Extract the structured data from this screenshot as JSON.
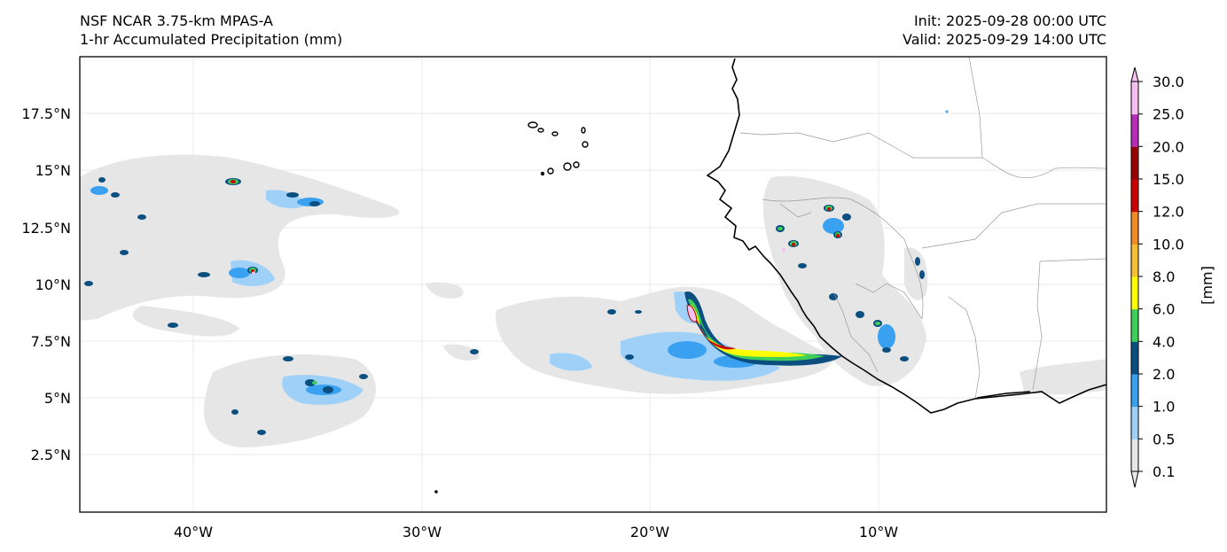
{
  "header": {
    "model": "NSF NCAR 3.75-km MPAS-A",
    "field": "1-hr Accumulated Precipitation (mm)",
    "init": "Init: 2025-09-28 00:00 UTC",
    "valid": "Valid: 2025-09-29 14:00 UTC"
  },
  "map": {
    "lat_ticks": [
      "17.5°N",
      "15°N",
      "12.5°N",
      "10°N",
      "7.5°N",
      "5°N",
      "2.5°N"
    ],
    "lon_ticks": [
      "40°W",
      "30°W",
      "20°W",
      "10°W"
    ],
    "extent": {
      "lon": [
        -45,
        0
      ],
      "lat": [
        0,
        20
      ]
    }
  },
  "colorbar": {
    "unit_label": "[mm]",
    "levels": [
      "0.1",
      "0.5",
      "1.0",
      "2.0",
      "4.0",
      "6.0",
      "8.0",
      "10.0",
      "12.0",
      "15.0",
      "20.0",
      "25.0",
      "30.0"
    ],
    "colors": [
      "#e6e6e6",
      "#9fd0f7",
      "#3aa0f0",
      "#0a4f80",
      "#3ecf5a",
      "#ffff00",
      "#f5c033",
      "#f08c24",
      "#cc0000",
      "#980000",
      "#b82db8",
      "#f7c0f0"
    ]
  }
}
